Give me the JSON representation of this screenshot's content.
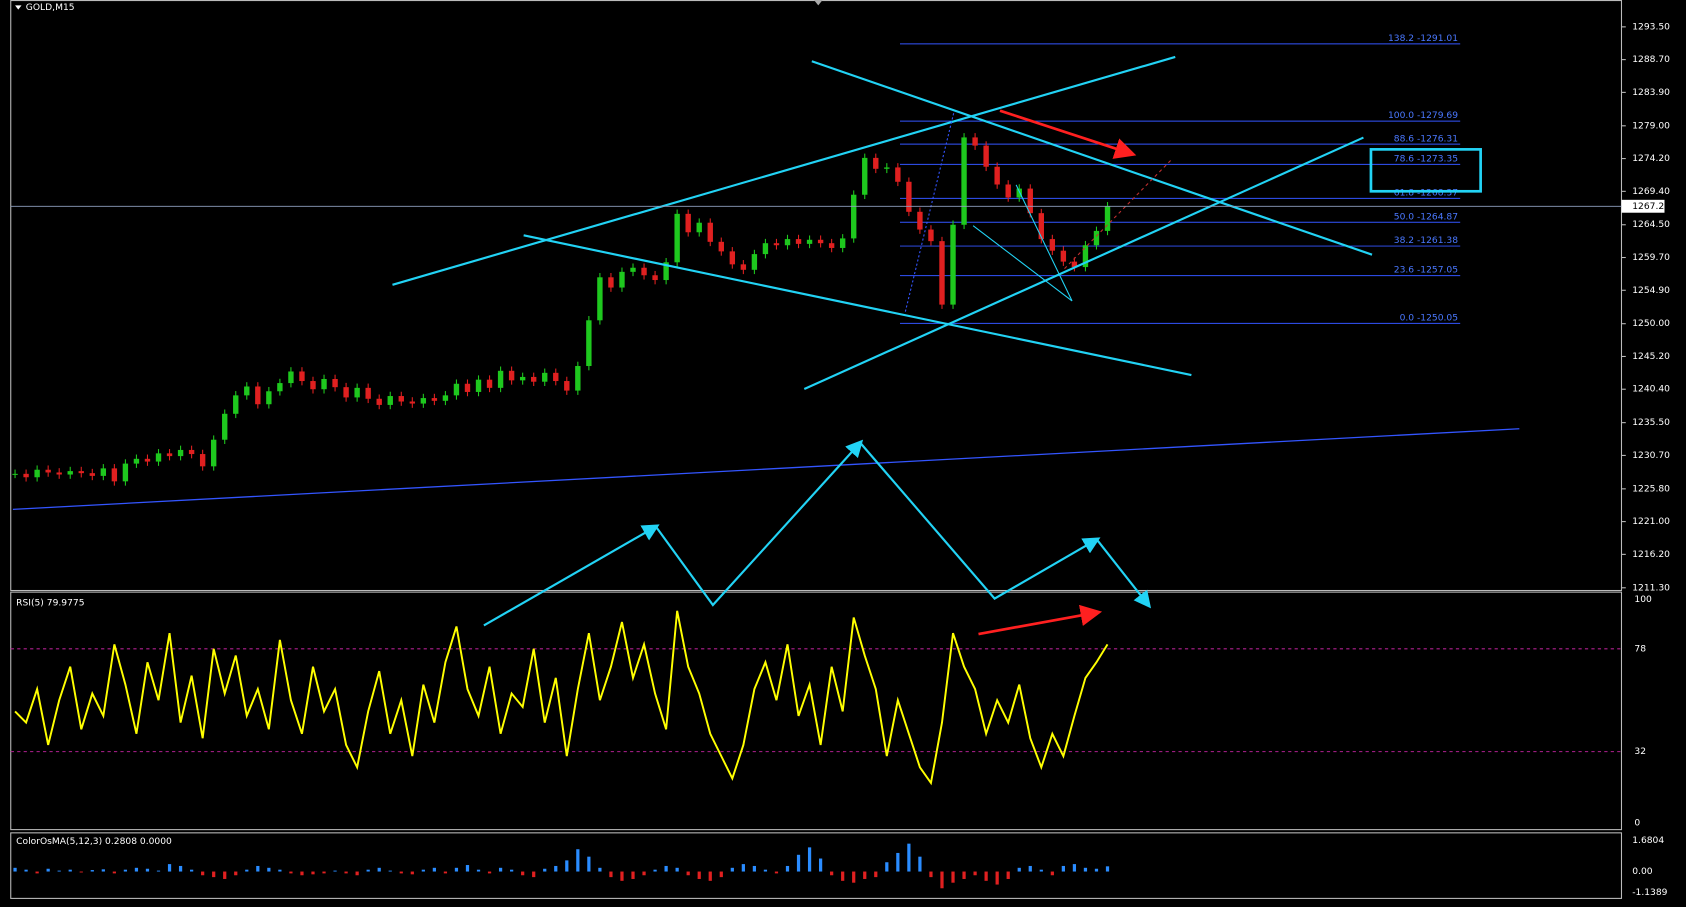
{
  "window": {
    "title": "GOLD,M15"
  },
  "price_panel": {
    "ticks": [
      {
        "value": 1293.5,
        "label": "1293.50"
      },
      {
        "value": 1288.7,
        "label": "1288.70"
      },
      {
        "value": 1283.9,
        "label": "1283.90"
      },
      {
        "value": 1279.0,
        "label": "1279.00"
      },
      {
        "value": 1274.2,
        "label": "1274.20"
      },
      {
        "value": 1269.4,
        "label": "1269.40"
      },
      {
        "value": 1264.5,
        "label": "1264.50"
      },
      {
        "value": 1259.7,
        "label": "1259.70"
      },
      {
        "value": 1254.9,
        "label": "1254.90"
      },
      {
        "value": 1250.0,
        "label": "1250.00"
      },
      {
        "value": 1245.2,
        "label": "1245.20"
      },
      {
        "value": 1240.4,
        "label": "1240.40"
      },
      {
        "value": 1235.5,
        "label": "1235.50"
      },
      {
        "value": 1230.7,
        "label": "1230.70"
      },
      {
        "value": 1225.8,
        "label": "1225.80"
      },
      {
        "value": 1221.0,
        "label": "1221.00"
      },
      {
        "value": 1216.2,
        "label": "1216.20"
      },
      {
        "value": 1211.3,
        "label": "1211.30"
      }
    ],
    "current_price": {
      "value": 1267.21,
      "label": "1267.21"
    },
    "fib_levels": [
      {
        "value": 1291.01,
        "label": "138.2 -1291.01"
      },
      {
        "value": 1279.69,
        "label": "100.0 -1279.69"
      },
      {
        "value": 1276.31,
        "label": "88.6 -1276.31"
      },
      {
        "value": 1273.35,
        "label": "78.6 -1273.35"
      },
      {
        "value": 1268.37,
        "label": "61.8 -1268.37"
      },
      {
        "value": 1264.87,
        "label": "50.0 -1264.87"
      },
      {
        "value": 1261.38,
        "label": "38.2 -1261.38"
      },
      {
        "value": 1257.05,
        "label": "23.6 -1257.05"
      },
      {
        "value": 1250.05,
        "label": "0.0 -1250.05"
      }
    ],
    "closes": [
      1228,
      1227.5,
      1228.6,
      1228.2,
      1227.9,
      1228.4,
      1228.1,
      1227.7,
      1228.8,
      1226.9,
      1229.5,
      1230.2,
      1229.8,
      1231.0,
      1230.6,
      1231.5,
      1230.9,
      1229.1,
      1233.0,
      1236.8,
      1239.5,
      1240.8,
      1238.2,
      1240.1,
      1241.3,
      1243.0,
      1241.6,
      1240.4,
      1241.9,
      1240.7,
      1239.2,
      1240.6,
      1239.0,
      1238.1,
      1239.4,
      1238.6,
      1238.3,
      1239.1,
      1238.7,
      1239.5,
      1241.2,
      1240.0,
      1241.8,
      1240.6,
      1243.1,
      1241.7,
      1242.2,
      1241.5,
      1242.8,
      1241.6,
      1240.2,
      1243.8,
      1250.5,
      1256.8,
      1255.3,
      1257.6,
      1258.2,
      1257.1,
      1256.4,
      1259.0,
      1266.1,
      1263.4,
      1264.8,
      1262.0,
      1260.6,
      1258.7,
      1257.9,
      1260.2,
      1261.8,
      1261.5,
      1262.4,
      1261.7,
      1262.3,
      1261.8,
      1261.1,
      1262.5,
      1268.9,
      1274.3,
      1272.7,
      1272.9,
      1270.8,
      1266.4,
      1263.8,
      1262.1,
      1252.8,
      1264.5,
      1277.3,
      1276.1,
      1273.0,
      1270.4,
      1268.5,
      1269.8,
      1266.2,
      1262.4,
      1260.7,
      1259.1,
      1258.3,
      1261.5,
      1263.6,
      1267.2
    ]
  },
  "rsi_panel": {
    "label": "RSI(5) 79.9775",
    "ticks": [
      100,
      78,
      32,
      0
    ],
    "values": [
      50,
      45,
      60,
      35,
      55,
      70,
      42,
      58,
      48,
      80,
      62,
      40,
      72,
      55,
      85,
      45,
      66,
      38,
      78,
      58,
      75,
      48,
      60,
      42,
      82,
      55,
      40,
      70,
      50,
      60,
      35,
      25,
      50,
      68,
      40,
      55,
      30,
      62,
      45,
      72,
      88,
      60,
      48,
      70,
      40,
      58,
      52,
      78,
      45,
      65,
      30,
      60,
      85,
      55,
      70,
      90,
      65,
      80,
      58,
      42,
      95,
      70,
      58,
      40,
      30,
      20,
      35,
      60,
      72,
      55,
      80,
      48,
      62,
      35,
      70,
      50,
      92,
      75,
      60,
      30,
      55,
      40,
      25,
      18,
      45,
      85,
      70,
      60,
      40,
      55,
      45,
      62,
      38,
      25,
      40,
      30,
      48,
      65,
      72,
      80
    ]
  },
  "osma_panel": {
    "label": "ColorOsMA(5,12,3) 0.2808 0.0000",
    "ticks": [
      1.6804,
      {
        "value": 0,
        "label": "0.00"
      },
      -1.1389
    ],
    "values": [
      0.2,
      0.1,
      -0.1,
      0.15,
      0.05,
      0.1,
      -0.05,
      0.08,
      0.12,
      -0.1,
      0.1,
      0.2,
      0.15,
      0.05,
      0.4,
      0.3,
      0.1,
      -0.2,
      -0.3,
      -0.4,
      -0.2,
      0.1,
      0.3,
      0.2,
      0.1,
      -0.1,
      -0.2,
      -0.15,
      -0.1,
      0.05,
      -0.1,
      -0.2,
      0.1,
      0.2,
      0.05,
      -0.1,
      -0.15,
      0.1,
      0.2,
      -0.1,
      0.2,
      0.35,
      0.1,
      -0.1,
      0.2,
      0.1,
      -0.2,
      -0.3,
      0.15,
      0.3,
      0.6,
      1.2,
      0.8,
      0.2,
      -0.3,
      -0.5,
      -0.4,
      -0.2,
      0.1,
      0.3,
      0.2,
      -0.2,
      -0.4,
      -0.5,
      -0.3,
      0.2,
      0.4,
      0.3,
      0.1,
      -0.1,
      0.3,
      0.9,
      1.3,
      0.7,
      -0.2,
      -0.5,
      -0.6,
      -0.4,
      -0.3,
      0.5,
      1.0,
      1.5,
      0.8,
      -0.3,
      -0.9,
      -0.6,
      -0.4,
      -0.2,
      -0.5,
      -0.7,
      -0.4,
      0.2,
      0.3,
      0.1,
      -0.2,
      0.3,
      0.4,
      0.2,
      0.15,
      0.28
    ]
  }
}
